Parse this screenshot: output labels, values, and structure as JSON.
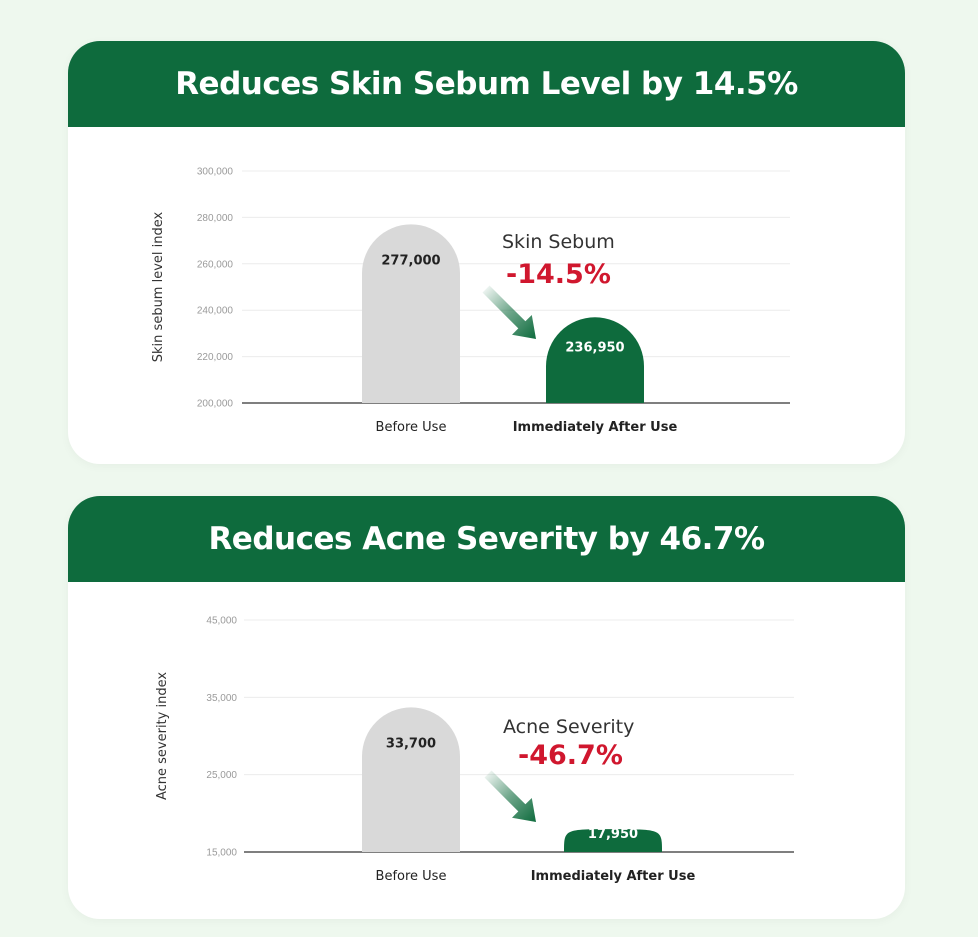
{
  "colors": {
    "background": "#eef8ee",
    "header": "#0e6b3d",
    "before_bar": "#d9d9d9",
    "after_bar": "#0e6b3d",
    "reduction_text": "#d0172e"
  },
  "chart_data": [
    {
      "type": "bar",
      "title": "Reduces Skin Sebum Level by 14.5%",
      "ylabel": "Skin sebum level index",
      "xlabel": "",
      "categories": [
        "Before Use",
        "Immediately After Use"
      ],
      "values": [
        277000,
        236950
      ],
      "value_labels": [
        "277,000",
        "236,950"
      ],
      "ylim": [
        200000,
        300000
      ],
      "yticks": [
        "300,000",
        "280,000",
        "260,000",
        "240,000",
        "220,000",
        "200,000"
      ],
      "ytick_values": [
        300000,
        280000,
        260000,
        240000,
        220000,
        200000
      ],
      "grid": true,
      "annotation": {
        "label": "Skin Sebum",
        "change": "-14.5%"
      }
    },
    {
      "type": "bar",
      "title": "Reduces Acne Severity by 46.7%",
      "ylabel": "Acne severity index",
      "xlabel": "",
      "categories": [
        "Before Use",
        "Immediately After Use"
      ],
      "values": [
        33700,
        17950
      ],
      "value_labels": [
        "33,700",
        "17,950"
      ],
      "ylim": [
        15000,
        45000
      ],
      "yticks": [
        "45,000",
        "35,000",
        "25,000",
        "15,000"
      ],
      "ytick_values": [
        45000,
        35000,
        25000,
        15000
      ],
      "grid": true,
      "annotation": {
        "label": "Acne Severity",
        "change": "-46.7%"
      }
    }
  ]
}
